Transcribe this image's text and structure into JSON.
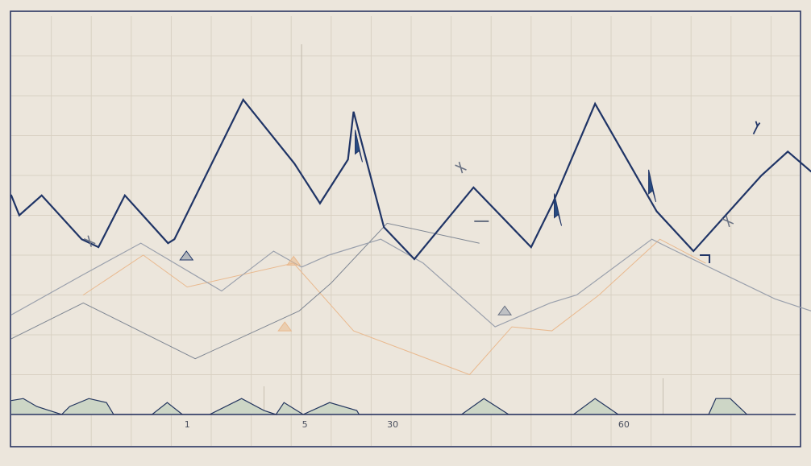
{
  "chart_data": {
    "type": "line",
    "title": "",
    "xlabel": "",
    "ylabel": "",
    "xlim": [
      0,
      100
    ],
    "ylim": [
      0,
      100
    ],
    "grid": true,
    "tick_labels": [
      {
        "x": 22,
        "label": "1"
      },
      {
        "x": 36.7,
        "label": "5"
      },
      {
        "x": 47.7,
        "label": "30"
      },
      {
        "x": 76.6,
        "label": "60"
      }
    ],
    "series": [
      {
        "color": "#1f3466",
        "width": 2.2,
        "points": [
          [
            0,
            55
          ],
          [
            1,
            50
          ],
          [
            3.8,
            55
          ],
          [
            8.8,
            44
          ],
          [
            10.9,
            42
          ],
          [
            14.2,
            55
          ],
          [
            19.6,
            43
          ],
          [
            20.4,
            44
          ],
          [
            29,
            79
          ],
          [
            35.4,
            63
          ],
          [
            38.6,
            53
          ],
          [
            42.1,
            64
          ],
          [
            42.8,
            76
          ],
          [
            46.6,
            47
          ],
          [
            50.4,
            39
          ],
          [
            57.8,
            57
          ],
          [
            65,
            42
          ],
          [
            67.7,
            53
          ],
          [
            73,
            78
          ],
          [
            80.7,
            51
          ],
          [
            85.3,
            41
          ],
          [
            93.8,
            60
          ],
          [
            97.1,
            66
          ],
          [
            100,
            61
          ]
        ]
      },
      {
        "color": "#9aa0ac",
        "width": 1.2,
        "points": [
          [
            0,
            25
          ],
          [
            8.9,
            35
          ],
          [
            16.2,
            43
          ],
          [
            26.3,
            31
          ],
          [
            32.8,
            41
          ],
          [
            36.3,
            37
          ],
          [
            39.7,
            40
          ],
          [
            46.2,
            44
          ],
          [
            51.5,
            38
          ],
          [
            60.5,
            22
          ],
          [
            67.4,
            28
          ],
          [
            70.7,
            30
          ],
          [
            80.1,
            44
          ],
          [
            82.1,
            42
          ],
          [
            95.5,
            29
          ],
          [
            100,
            26
          ]
        ]
      },
      {
        "color": "#7f8793",
        "width": 1.0,
        "points": [
          [
            0,
            19
          ],
          [
            9,
            28
          ],
          [
            23,
            14
          ],
          [
            36,
            26
          ],
          [
            40,
            33
          ],
          [
            47,
            48
          ],
          [
            58.5,
            43
          ]
        ]
      },
      {
        "color": "#e9b98e",
        "width": 1.0,
        "points": [
          [
            9,
            30
          ],
          [
            16.5,
            40
          ],
          [
            22,
            32
          ],
          [
            35.3,
            38
          ],
          [
            42.8,
            21
          ],
          [
            57.3,
            10
          ],
          [
            62.6,
            22
          ],
          [
            67.6,
            21
          ],
          [
            73.5,
            30
          ],
          [
            81.1,
            44
          ],
          [
            86.8,
            38
          ]
        ]
      }
    ],
    "area": {
      "fill": "#cdd6c6",
      "stroke": "#23355e",
      "baseline": 0,
      "points": [
        [
          0,
          3.5
        ],
        [
          1.5,
          4
        ],
        [
          3.2,
          2
        ],
        [
          6.3,
          0
        ],
        [
          7.3,
          2
        ],
        [
          9.7,
          4
        ],
        [
          11.9,
          3
        ],
        [
          12.8,
          0
        ],
        [
          17.6,
          0
        ],
        [
          19.5,
          3
        ],
        [
          21.4,
          0
        ],
        [
          24.8,
          0
        ],
        [
          28.8,
          4
        ],
        [
          31.6,
          1
        ],
        [
          33.1,
          0
        ],
        [
          34.1,
          3
        ],
        [
          36.5,
          0
        ],
        [
          39.8,
          3
        ],
        [
          43.2,
          1
        ],
        [
          43.5,
          0
        ],
        [
          56.3,
          0
        ],
        [
          59.1,
          4
        ],
        [
          62.2,
          0
        ],
        [
          65.8,
          0
        ],
        [
          70.3,
          0
        ],
        [
          73,
          4
        ],
        [
          75.9,
          0
        ],
        [
          87.2,
          0
        ],
        [
          88.1,
          4
        ],
        [
          89.9,
          4
        ],
        [
          92,
          0
        ]
      ]
    },
    "annotations": [
      {
        "x": 21.9,
        "y": 39.8,
        "rot": 0,
        "color": "#1f3466",
        "fill": "#8a95a8",
        "shape": "triangle"
      },
      {
        "x": 43.4,
        "y": 67,
        "rot": 0,
        "color": "#1f3466",
        "fill": "#274a80",
        "shape": "bolt"
      },
      {
        "x": 56.2,
        "y": 62,
        "rot": 0,
        "color": "#6b7384",
        "fill": "#9aa2b0",
        "shape": "cross"
      },
      {
        "x": 58.8,
        "y": 48.5,
        "rot": 0,
        "color": "#6b7384",
        "fill": "#9aa2b0",
        "shape": "dash"
      },
      {
        "x": 68.3,
        "y": 51,
        "rot": 0,
        "color": "#1f3466",
        "fill": "#274a80",
        "shape": "bolt"
      },
      {
        "x": 80.1,
        "y": 57,
        "rot": 0,
        "color": "#1f3466",
        "fill": "#274a80",
        "shape": "bolt"
      },
      {
        "x": 86.7,
        "y": 39,
        "rot": 0,
        "color": "#1f3466",
        "fill": "#e9b98e",
        "shape": "corner"
      },
      {
        "x": 89.6,
        "y": 48.5,
        "rot": 0,
        "color": "#6b7384",
        "fill": "#9aa2b0",
        "shape": "cross"
      },
      {
        "x": 93.2,
        "y": 72,
        "rot": 0,
        "color": "#1f3466",
        "fill": "#274a80",
        "shape": "check"
      },
      {
        "x": 9.8,
        "y": 43.5,
        "rot": 0,
        "color": "#6b7384",
        "fill": "#9aa2b0",
        "shape": "cross"
      },
      {
        "x": 35.3,
        "y": 38.5,
        "rot": 0,
        "color": "#e9b98e",
        "fill": "#e9b98e",
        "shape": "triangle"
      },
      {
        "x": 34.2,
        "y": 22,
        "rot": 0,
        "color": "#e9b98e",
        "fill": "#e9b98e",
        "shape": "triangle"
      },
      {
        "x": 61.7,
        "y": 26,
        "rot": 0,
        "color": "#6b7384",
        "fill": "#9aa2b0",
        "shape": "triangle"
      }
    ]
  }
}
